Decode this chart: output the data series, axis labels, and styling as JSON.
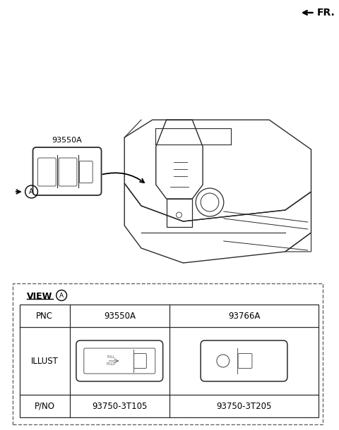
{
  "bg_color": "#ffffff",
  "fr_label": "FR.",
  "view_label": "VIEW",
  "circle_a": "A",
  "table": {
    "headers": [
      "PNC",
      "93550A",
      "93766A"
    ],
    "row2_label": "ILLUST",
    "row3": [
      "P/NO",
      "93750-3T105",
      "93750-3T205"
    ]
  }
}
